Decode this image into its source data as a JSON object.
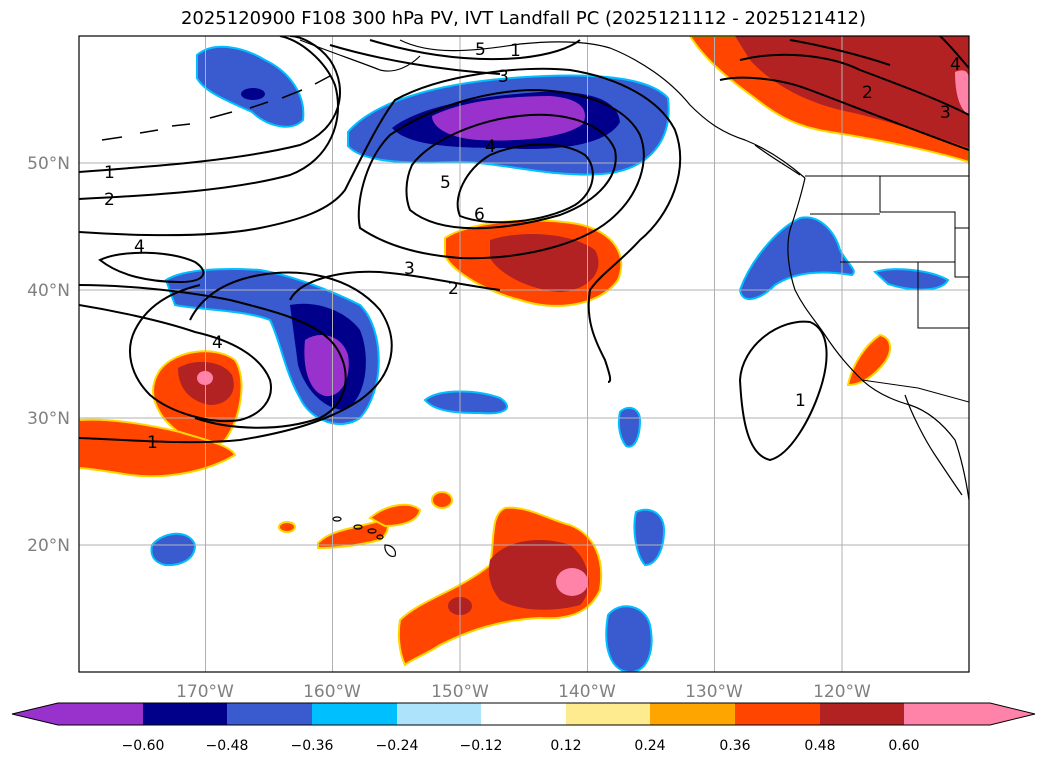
{
  "figure": {
    "title": "2025120900 F108 300 hPa PV, IVT Landfall PC (2025121112 - 2025121412)"
  },
  "map": {
    "lon_range": [
      -180,
      -110
    ],
    "lat_range": [
      10,
      60
    ],
    "lat_labels": [
      "50°N",
      "40°N",
      "30°N",
      "20°N"
    ],
    "lat_values": [
      50,
      40,
      30,
      20
    ],
    "lon_labels": [
      "170°W",
      "160°W",
      "150°W",
      "140°W",
      "130°W",
      "120°W"
    ],
    "lon_values": [
      -170,
      -160,
      -150,
      -140,
      -130,
      -120
    ],
    "grid": true
  },
  "contours": {
    "labels": [
      "1",
      "2",
      "3",
      "4",
      "5",
      "6",
      "1",
      "2",
      "3",
      "4",
      "5",
      "1",
      "2",
      "3",
      "4",
      "4",
      "1"
    ],
    "line_color": "#000000"
  },
  "colorbar": {
    "tick_labels": [
      "−0.60",
      "−0.48",
      "−0.36",
      "−0.24",
      "−0.12",
      "0.12",
      "0.24",
      "0.36",
      "0.48",
      "0.60"
    ],
    "colors": [
      "#9932cc",
      "#00008b",
      "#3a5bcf",
      "#00bfff",
      "#ade4fb",
      "#ffffff",
      "#ffeb8f",
      "#ffa500",
      "#ff4500",
      "#b22222",
      "#ff82a8"
    ]
  }
}
